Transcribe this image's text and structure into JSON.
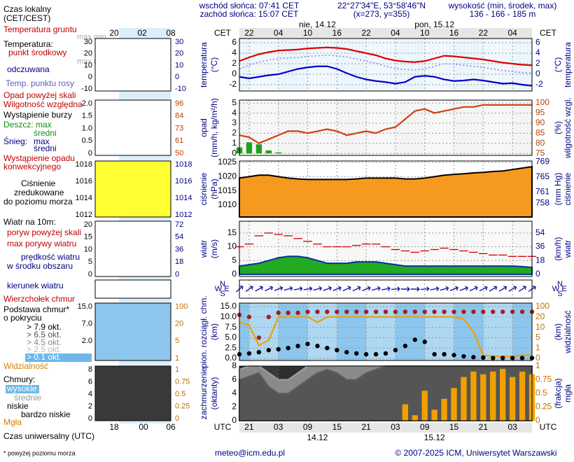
{
  "header": {
    "sunrise": "wschód słońca: 07:41 CET",
    "sunset": "zachód słońca: 15:07 CET",
    "coords": "22°27'34\"E, 53°58'46\"N",
    "grid": "(x=273, y=355)",
    "elevation_title": "wysokość (min, środek, max)",
    "elevation": "136 - 166 - 185 m"
  },
  "footer": {
    "email": "meteo@icm.edu.pl",
    "copyright": "© 2007-2025 ICM, Uniwersytet Warszawski",
    "note": "* powyżej poziomu morza"
  },
  "legend_panel": {
    "labels": [
      "Czas lokalny",
      "(CET/CEST)",
      "Temperatura gruntu",
      "max min",
      "Temperatura:",
      "punkt środkowy",
      "max min",
      "odczuwana",
      "Temp. punktu rosy",
      "Opad powyżej skali",
      "Wilgotność względna",
      "Wystąpienie burzy",
      "Deszcz: max",
      "średni",
      "Śnieg:",
      "max",
      "średni",
      "Wystąpienie opadu",
      "konwekcyjnego",
      "Ciśnienie",
      "zredukowane",
      "do poziomu morza",
      "Wiatr na 10m:",
      "poryw powyżej skali",
      "max porywy wiatru",
      "prędkość wiatru",
      "w środku obszaru",
      "kierunek wiatru",
      "Wierzchołek chmur",
      "Podstawa chmur*",
      "o pokryciu",
      "> 7.9 okt.",
      "> 6.5 okt.",
      "> 4.5 okt.",
      "> 2.5 okt.",
      "> 0.1 okt.",
      "Widzialność",
      "Chmury:",
      "wysokie",
      "średnie",
      "niskie",
      "bardzo niskie",
      "Mgła",
      "Czas uniwersalny (UTC)"
    ],
    "time_top": [
      "20",
      "02",
      "08"
    ],
    "time_bottom": [
      "18",
      "00",
      "06"
    ],
    "mini_axes": [
      {
        "left": [
          "30",
          "20",
          "10",
          "0",
          "-10"
        ],
        "right": [
          "30",
          "20",
          "10",
          "0",
          "-10"
        ]
      },
      {
        "left": [
          "2.0",
          "1.5",
          "1.0",
          "0.5",
          "0"
        ],
        "right": [
          "96",
          "84",
          "73",
          "61",
          "50"
        ]
      },
      {
        "left": [
          "1018",
          "1016",
          "1014",
          "1012"
        ],
        "right": [
          "1018",
          "1016",
          "1014",
          "1012"
        ]
      },
      {
        "left": [
          "20",
          "15",
          "10",
          "5",
          "0"
        ],
        "right": [
          "72",
          "54",
          "36",
          "18",
          "0"
        ]
      },
      {
        "left": [],
        "right": []
      },
      {
        "left": [
          "15.0",
          "7.0",
          "2.0"
        ],
        "right": [
          "100",
          "20",
          "5",
          "1"
        ]
      },
      {
        "left": [
          "8",
          "6",
          "4",
          "2",
          "0"
        ],
        "right": [
          "1",
          "0.75",
          "0.5",
          "0.25",
          "0"
        ]
      }
    ]
  },
  "chart_data": {
    "type": "meteogram",
    "top_zone": "CET",
    "bottom_zone": "UTC",
    "x": [
      0,
      2,
      4,
      6,
      8,
      10,
      12,
      14,
      16,
      18,
      20,
      22,
      24,
      26,
      28,
      30,
      32,
      34,
      36,
      38,
      40,
      42,
      44,
      46,
      48,
      50,
      52,
      54,
      56,
      58,
      60
    ],
    "xlim": [
      0,
      60
    ],
    "xticks_top": [
      {
        "value": 2,
        "label": "22"
      },
      {
        "value": 8,
        "label": "04"
      },
      {
        "value": 14,
        "label": "10"
      },
      {
        "value": 20,
        "label": "16"
      },
      {
        "value": 26,
        "label": "22"
      },
      {
        "value": 32,
        "label": "04"
      },
      {
        "value": 38,
        "label": "10"
      },
      {
        "value": 44,
        "label": "16"
      },
      {
        "value": 50,
        "label": "22"
      },
      {
        "value": 56,
        "label": "04"
      }
    ],
    "xticks_bottom": [
      {
        "value": 2,
        "label": "21"
      },
      {
        "value": 8,
        "label": "03"
      },
      {
        "value": 14,
        "label": "09"
      },
      {
        "value": 20,
        "label": "15"
      },
      {
        "value": 26,
        "label": "21"
      },
      {
        "value": 32,
        "label": "03"
      },
      {
        "value": 38,
        "label": "09"
      },
      {
        "value": 44,
        "label": "15"
      },
      {
        "value": 50,
        "label": "21"
      },
      {
        "value": 56,
        "label": "03"
      }
    ],
    "dates_top": [
      {
        "value": 16,
        "label": "nie, 14.12"
      },
      {
        "value": 40,
        "label": "pon, 15.12"
      }
    ],
    "dates_bottom": [
      {
        "value": 16,
        "label": "14.12"
      },
      {
        "value": 40,
        "label": "15.12"
      }
    ],
    "panels": [
      {
        "type": "line",
        "ylabel": [
          "temperatura",
          "(°C)"
        ],
        "y2label": [
          "(°C)",
          "temperatura"
        ],
        "ylim": [
          -3.2,
          6.8
        ],
        "yticks": [
          -2,
          0,
          2,
          4,
          6
        ],
        "y2lim": [
          -3.2,
          6.8
        ],
        "y2ticks": [
          -2,
          0,
          2,
          4,
          6
        ],
        "grid": true,
        "series": [
          {
            "type": "line",
            "color": "#8080e0",
            "dash": true,
            "values": [
              1.0,
              1.7,
              2.3,
              2.7,
              3.0,
              3.1,
              3.2,
              3.4,
              3.5,
              3.6,
              3.5,
              3.3,
              2.9,
              2.5,
              2.1,
              1.5,
              1.1,
              0.9,
              0.8,
              1.0,
              1.5,
              2.0,
              1.9,
              1.7,
              1.5,
              1.3,
              1.0,
              0.7,
              0.5,
              0.3,
              0.2
            ]
          },
          {
            "type": "line",
            "color": "#0000cc",
            "values": [
              -0.5,
              -0.8,
              -0.5,
              -0.2,
              0,
              0.5,
              1,
              1.3,
              1.5,
              1.5,
              1,
              0.2,
              -0.5,
              -1.0,
              -1.3,
              -1.5,
              -1.8,
              -1.5,
              -0.5,
              -0.3,
              -0.5,
              -1.0,
              -1.3,
              -1.2,
              -1.0,
              -1.2,
              -1.5,
              -1.8,
              -1.7,
              -2.0,
              -2.2
            ]
          },
          {
            "type": "line",
            "color": "#e00000",
            "values": [
              2.5,
              3.2,
              3.8,
              4.2,
              4.5,
              4.6,
              4.7,
              4.9,
              5.0,
              5.1,
              5.0,
              4.8,
              4.4,
              4.0,
              3.6,
              3.0,
              2.6,
              2.4,
              2.3,
              2.5,
              3.0,
              3.5,
              3.4,
              3.2,
              3.0,
              2.8,
              2.5,
              2.2,
              2.0,
              1.8,
              1.7
            ]
          }
        ]
      },
      {
        "type": "line",
        "ylabel": [
          "opad",
          "(mm/h, kg/m²/h)"
        ],
        "y2label": [
          "(%)",
          "wilgotność wzgl."
        ],
        "ylim": [
          -0.2,
          5.3
        ],
        "yticks": [
          0,
          1,
          2,
          3,
          4,
          5
        ],
        "y2lim": [
          74,
          101.4
        ],
        "y2ticks": [
          75,
          80,
          85,
          90,
          95,
          100
        ],
        "grid": true,
        "series": [
          {
            "type": "bar",
            "color": "#20a020",
            "values": [
              0.6,
              1.1,
              0.9,
              0.3,
              0.1,
              0,
              0,
              0,
              0,
              0,
              0,
              0,
              0,
              0,
              0,
              0,
              0,
              0,
              0,
              0,
              0,
              0,
              0,
              0,
              0,
              0,
              0,
              0,
              0,
              0,
              0
            ]
          },
          {
            "type": "line",
            "axis": "y2",
            "color": "#d04010",
            "values": [
              84,
              83,
              80,
              82,
              84,
              86,
              86,
              85,
              86,
              87,
              86,
              84,
              85,
              86,
              85,
              87,
              88,
              92,
              96,
              97,
              95,
              96,
              97,
              98,
              98,
              99,
              99,
              99,
              99,
              99,
              99
            ]
          }
        ]
      },
      {
        "type": "area",
        "ylabel": [
          "ciśnienie",
          "(hPa)"
        ],
        "y2label": [
          "(mm Hg)",
          "ciśnienie"
        ],
        "ylim": [
          1005.8,
          1025.5
        ],
        "yticks": [
          1010,
          1015,
          1020,
          1025
        ],
        "y2lim": [
          754.4,
          769.2
        ],
        "y2ticks": [
          758,
          761,
          765,
          769
        ],
        "grid": true,
        "series": [
          {
            "type": "area",
            "color": "#000000",
            "fill": "#f59a1e",
            "values": [
              1019.5,
              1020,
              1020.5,
              1020.5,
              1020,
              1019.5,
              1019.2,
              1019,
              1019,
              1019,
              1019,
              1019,
              1019.2,
              1019.5,
              1019.5,
              1019.5,
              1019.5,
              1019.2,
              1019.2,
              1019.5,
              1020,
              1020.5,
              1020.8,
              1021,
              1021.3,
              1021.5,
              1021.8,
              1022,
              1022.5,
              1023,
              1023.5
            ]
          }
        ]
      },
      {
        "type": "area",
        "ylabel": [
          "wiatr",
          "(m/s)"
        ],
        "y2label": [
          "(km/h)",
          "wiatr"
        ],
        "ylim": [
          -0.8,
          19.3
        ],
        "yticks": [
          0,
          5,
          10,
          15
        ],
        "y2lim": [
          -2.9,
          69.5
        ],
        "y2ticks": [
          0,
          18,
          36,
          54
        ],
        "grid": true,
        "series": [
          {
            "type": "area",
            "color": "#003399",
            "fill": "#22aa22",
            "values": [
              3,
              3.5,
              4,
              5,
              6,
              6.5,
              6.5,
              6,
              5,
              4,
              4,
              4,
              4.5,
              4.5,
              4.5,
              4,
              3.5,
              3,
              3,
              3,
              3,
              3,
              3,
              3,
              3,
              3,
              3,
              3,
              3,
              2.8,
              2.5
            ]
          },
          {
            "type": "dashes",
            "color": "#d00000",
            "values": [
              10,
              11,
              14,
              15,
              14.5,
              14,
              13,
              12,
              11,
              10,
              10,
              10,
              10.5,
              11,
              11,
              10,
              9,
              8.5,
              8,
              8.5,
              9,
              9.5,
              9,
              8.5,
              8,
              7.5,
              7,
              7,
              6.5,
              6.5,
              6.5
            ]
          }
        ]
      },
      {
        "type": "arrows",
        "compass": [
          "N",
          "W",
          "E",
          "S"
        ],
        "series": [
          {
            "type": "arrows",
            "color": "#1a1aa0",
            "values": [
              230,
              235,
              240,
              245,
              250,
              255,
              260,
              260,
              255,
              250,
              250,
              245,
              245,
              250,
              255,
              260,
              265,
              270,
              270,
              265,
              260,
              255,
              250,
              250,
              245,
              245,
              240,
              240,
              240,
              235,
              235
            ]
          }
        ]
      },
      {
        "type": "line",
        "scale": "piecewise",
        "ylabel": [
          "pion. rozciągł. chm.",
          "(km)"
        ],
        "y2label": [
          "(km)",
          "widzialność"
        ],
        "ylim": [
          0,
          15
        ],
        "yticks": [
          {
            "value": 0,
            "label": "0.0"
          },
          {
            "value": 2.5,
            "label": "2.5"
          },
          {
            "value": 5,
            "label": "5.0"
          },
          {
            "value": 7.5,
            "label": "7.5"
          },
          {
            "value": 10,
            "label": "10.0"
          },
          {
            "value": 15,
            "label": "15.0"
          }
        ],
        "y2lim": [
          0,
          100
        ],
        "y2ticks": [
          0,
          1,
          5,
          10,
          20,
          100
        ],
        "grid": true,
        "series": [
          {
            "type": "line",
            "axis": "y2",
            "color": "#f0a000",
            "values": [
              15,
              12,
              2,
              4,
              20,
              20,
              20,
              20,
              15,
              20,
              20,
              20,
              20,
              20,
              20,
              20,
              20,
              20,
              20,
              20,
              20,
              20,
              20,
              18,
              8,
              0.3,
              0.2,
              0.2,
              0.2,
              0.3,
              0.3
            ]
          },
          {
            "type": "dots",
            "color": "#a02020",
            "values": [
              11,
              10,
              5,
              10,
              12,
              12,
              12,
              12.5,
              12.5,
              12.5,
              12.5,
              12.5,
              12.5,
              12.5,
              12.5,
              12.5,
              12.5,
              12.5,
              12.5,
              12.5,
              12.5,
              12.5,
              12.5,
              12.5,
              12.5,
              12.5,
              12.5,
              12.5,
              12.5,
              12.5,
              12.5
            ]
          },
          {
            "type": "dots",
            "color": "#000000",
            "values": [
              1.0,
              1.2,
              1.5,
              2.0,
              2.2,
              2.5,
              3.0,
              3.5,
              3.0,
              2.5,
              2.0,
              1.5,
              1.2,
              1.0,
              1.0,
              1.2,
              2.0,
              3.0,
              4.5,
              4.0,
              1.0,
              1.0,
              0.8,
              0.5,
              0.3,
              0.2,
              0.1,
              0.1,
              0.1,
              0.1,
              0.1
            ]
          }
        ]
      },
      {
        "type": "area",
        "ylabel": [
          "zachmurzenie",
          "(oktanty)"
        ],
        "y2label": [
          "(frakcja)",
          "mgła"
        ],
        "ylim": [
          0,
          8
        ],
        "yticks": [
          0,
          2,
          4,
          6,
          8
        ],
        "y2lim": [
          0,
          1
        ],
        "y2ticks": [
          0,
          0.25,
          0.5,
          0.75,
          1
        ],
        "grid": true,
        "series": [
          {
            "type": "area",
            "color": "#a0a0a0",
            "fill": "#8a8a8a",
            "values": [
              7.5,
              8,
              8,
              7,
              6,
              6,
              7,
              8,
              8,
              8,
              8,
              8,
              8,
              8,
              8,
              8,
              8,
              8,
              8,
              8,
              8,
              8,
              8,
              8,
              8,
              8,
              8,
              8,
              8,
              8,
              8
            ]
          },
          {
            "type": "area",
            "color": "#606060",
            "fill": "#555555",
            "values": [
              6,
              6.5,
              7,
              5,
              4,
              4,
              5,
              6,
              7,
              7.5,
              7,
              6,
              6,
              7,
              7.5,
              8,
              8,
              8,
              8,
              8,
              8,
              8,
              8,
              8,
              8,
              8,
              8,
              8,
              8,
              8,
              8
            ]
          },
          {
            "type": "bar",
            "axis": "y2",
            "color": "#f0a000",
            "values": [
              0,
              0,
              0,
              0,
              0,
              0,
              0,
              0,
              0,
              0,
              0,
              0,
              0,
              0,
              0,
              0,
              0,
              0.3,
              0.1,
              0.55,
              0.2,
              0.4,
              0.6,
              0.8,
              0.9,
              0.85,
              0.9,
              0.95,
              0.8,
              0.9,
              0.85
            ]
          }
        ]
      }
    ]
  }
}
